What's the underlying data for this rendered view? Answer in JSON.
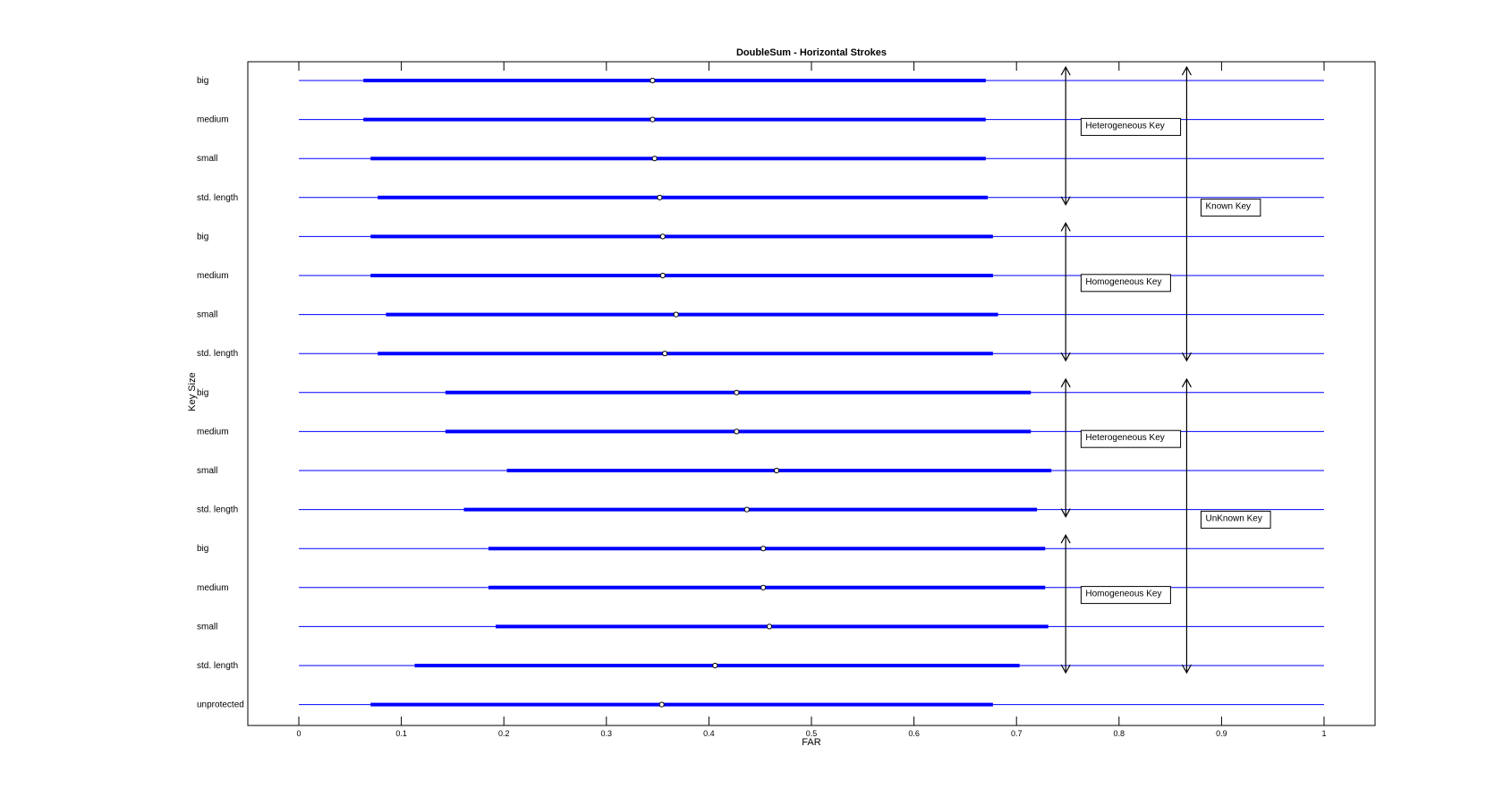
{
  "chart_data": {
    "type": "interval",
    "title": "DoubleSum - Horizontal Strokes",
    "xlabel": "FAR",
    "ylabel": "Key Size",
    "xlim": [
      -0.05,
      1.05
    ],
    "x_ticks": [
      0,
      0.1,
      0.2,
      0.3,
      0.4,
      0.5,
      0.6,
      0.7,
      0.8,
      0.9,
      1
    ],
    "x_tick_labels": [
      "0",
      "0.1",
      "0.2",
      "0.3",
      "0.4",
      "0.5",
      "0.6",
      "0.7",
      "0.8",
      "0.9",
      "1"
    ],
    "grid": false,
    "line_color": "#0000ff",
    "rows": [
      {
        "label": "big",
        "low": 0.063,
        "high": 0.67,
        "median": 0.345
      },
      {
        "label": "medium",
        "low": 0.063,
        "high": 0.67,
        "median": 0.345
      },
      {
        "label": "small",
        "low": 0.07,
        "high": 0.67,
        "median": 0.347
      },
      {
        "label": "std. length",
        "low": 0.077,
        "high": 0.672,
        "median": 0.352
      },
      {
        "label": "big",
        "low": 0.07,
        "high": 0.677,
        "median": 0.355
      },
      {
        "label": "medium",
        "low": 0.07,
        "high": 0.677,
        "median": 0.355
      },
      {
        "label": "small",
        "low": 0.085,
        "high": 0.682,
        "median": 0.368
      },
      {
        "label": "std. length",
        "low": 0.077,
        "high": 0.677,
        "median": 0.357
      },
      {
        "label": "big",
        "low": 0.143,
        "high": 0.714,
        "median": 0.427
      },
      {
        "label": "medium",
        "low": 0.143,
        "high": 0.714,
        "median": 0.427
      },
      {
        "label": "small",
        "low": 0.203,
        "high": 0.734,
        "median": 0.466
      },
      {
        "label": "std. length",
        "low": 0.161,
        "high": 0.72,
        "median": 0.437
      },
      {
        "label": "big",
        "low": 0.185,
        "high": 0.728,
        "median": 0.453
      },
      {
        "label": "medium",
        "low": 0.185,
        "high": 0.728,
        "median": 0.453
      },
      {
        "label": "small",
        "low": 0.192,
        "high": 0.731,
        "median": 0.459
      },
      {
        "label": "std. length",
        "low": 0.113,
        "high": 0.703,
        "median": 0.406
      },
      {
        "label": "unprotected",
        "low": 0.07,
        "high": 0.677,
        "median": 0.354
      }
    ],
    "annotations": [
      {
        "text": "Heterogeneous Key",
        "x_position": 0.748,
        "row_from": 0,
        "row_to": 3
      },
      {
        "text": "Homogeneous Key",
        "x_position": 0.748,
        "row_from": 4,
        "row_to": 7
      },
      {
        "text": "Heterogeneous Key",
        "x_position": 0.748,
        "row_from": 8,
        "row_to": 11
      },
      {
        "text": "Homogeneous Key",
        "x_position": 0.748,
        "row_from": 12,
        "row_to": 15
      },
      {
        "text": "Known Key",
        "x_position": 0.866,
        "row_from": 0,
        "row_to": 7
      },
      {
        "text": "UnKnown Key",
        "x_position": 0.866,
        "row_from": 8,
        "row_to": 15
      }
    ]
  }
}
